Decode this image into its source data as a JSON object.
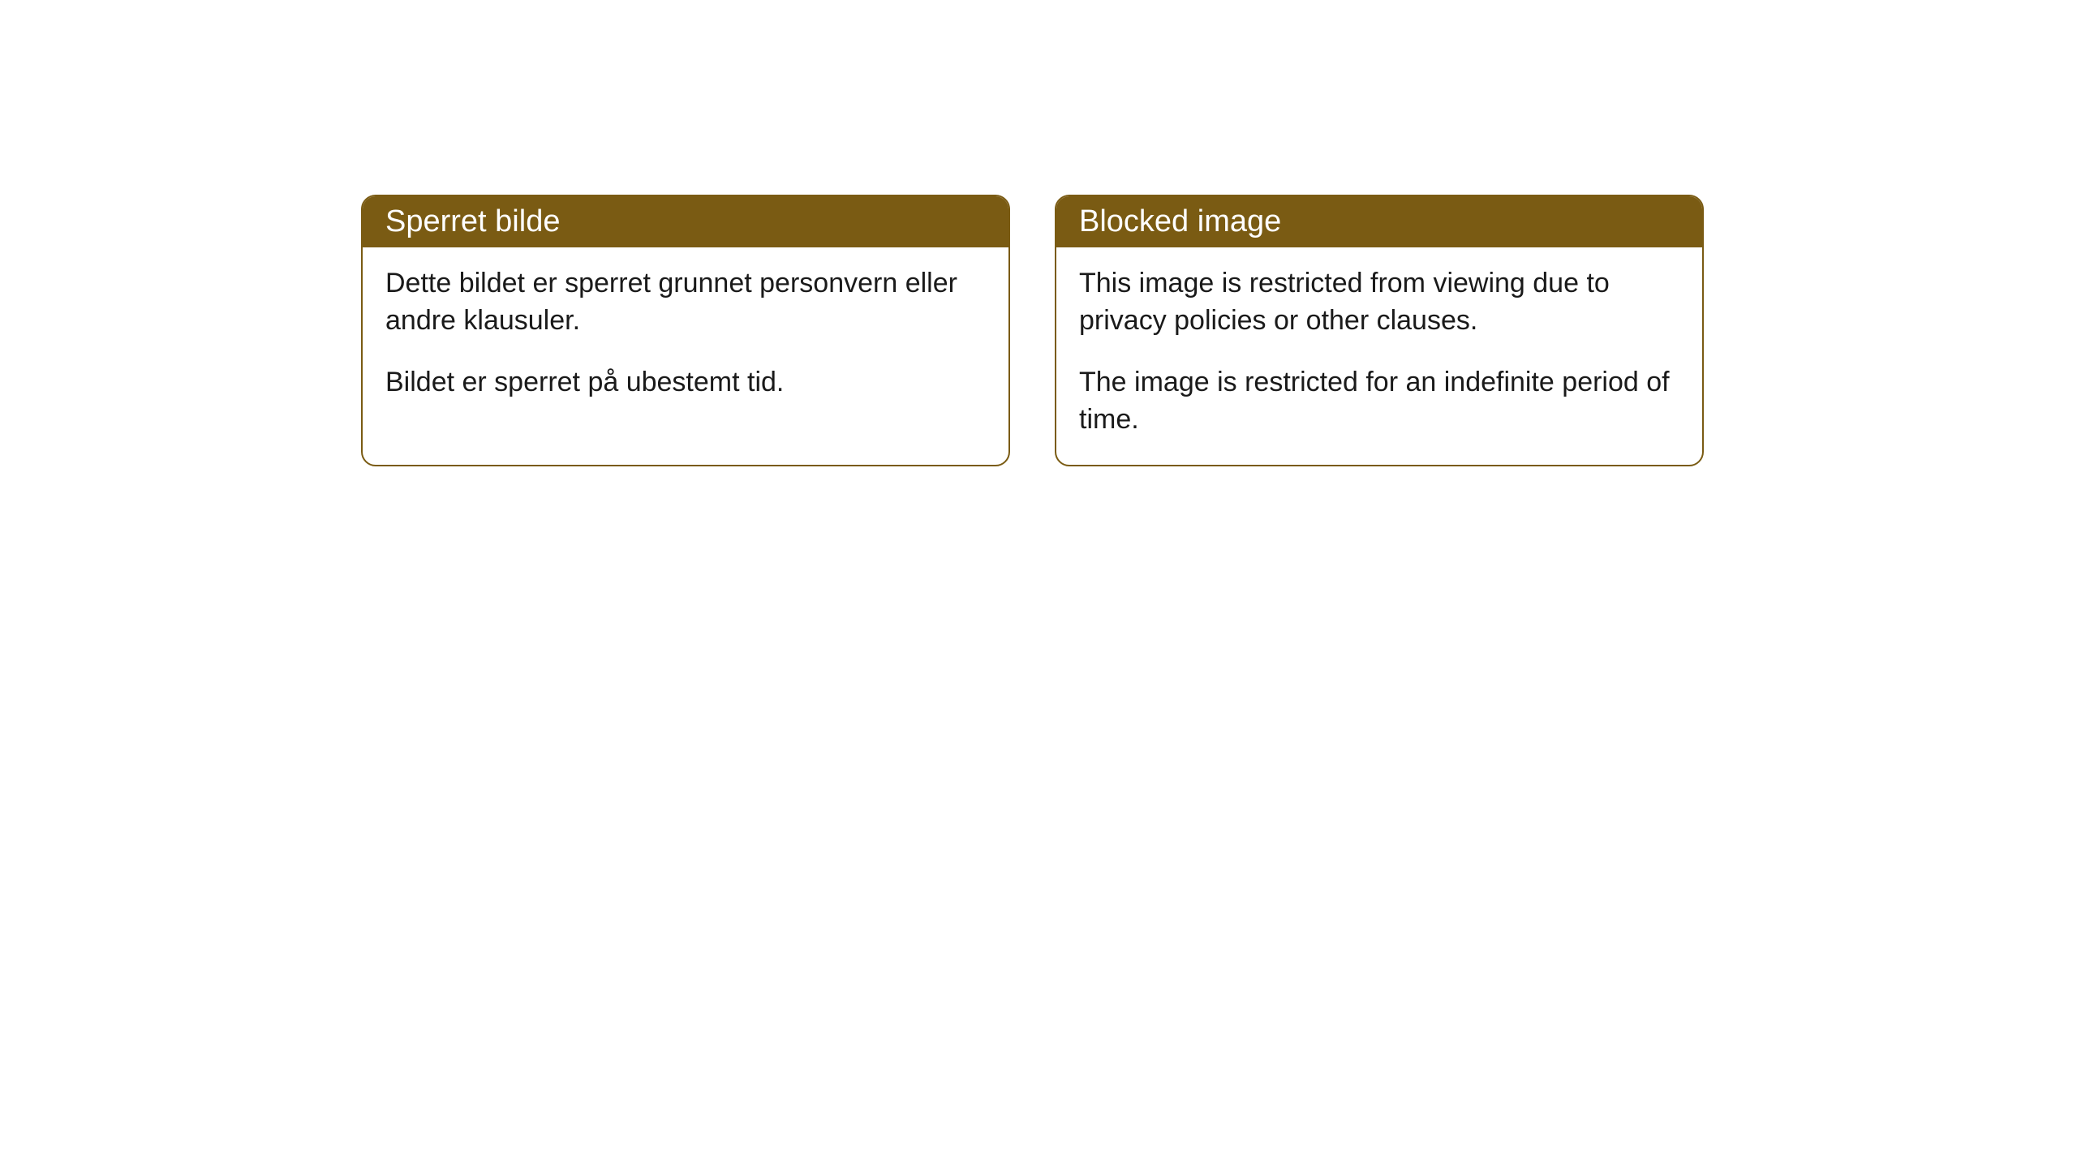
{
  "cards": [
    {
      "title": "Sperret bilde",
      "paragraph1": "Dette bildet er sperret grunnet personvern eller andre klausuler.",
      "paragraph2": "Bildet er sperret på ubestemt tid."
    },
    {
      "title": "Blocked image",
      "paragraph1": "This image is restricted from viewing due to privacy policies or other clauses.",
      "paragraph2": "The image is restricted for an indefinite period of time."
    }
  ],
  "colors": {
    "header_bg": "#7a5b13",
    "header_text": "#ffffff",
    "border": "#7a5b13",
    "body_bg": "#ffffff",
    "body_text": "#1a1a1a"
  },
  "typography": {
    "title_fontsize": 38,
    "body_fontsize": 34
  }
}
